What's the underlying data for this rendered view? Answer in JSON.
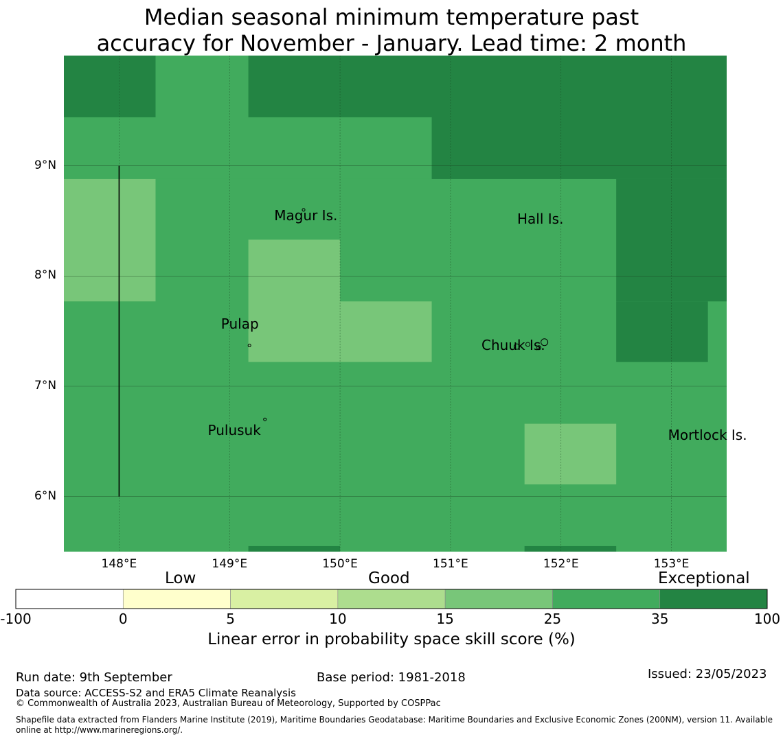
{
  "title": {
    "line1": "Median seasonal minimum temperature past",
    "line2": "accuracy for November - January. Lead time: 2 month"
  },
  "map": {
    "lon_range": [
      147.5,
      153.5
    ],
    "lat_range": [
      5.5,
      10.0
    ],
    "x_ticks": [
      "148°E",
      "149°E",
      "150°E",
      "151°E",
      "152°E",
      "153°E"
    ],
    "y_ticks": [
      "9°N",
      "8°N",
      "7°N",
      "6°N"
    ],
    "places": [
      {
        "name": "Magur Is.",
        "lon": 149.69,
        "lat": 8.6
      },
      {
        "name": "Hall Is.",
        "lon": 151.84,
        "lat": 8.62
      },
      {
        "name": "Pulap",
        "lon": 149.42,
        "lat": 7.59
      },
      {
        "name": "Chuuk Is.",
        "lon": 151.84,
        "lat": 7.45
      },
      {
        "name": "Mortlock Is.",
        "lon": 153.74,
        "lat": 6.66
      },
      {
        "name": "Pulusuk",
        "lon": 149.3,
        "lat": 6.7
      }
    ],
    "grid_cells": [
      {
        "lon": [
          147.5,
          148.33
        ],
        "lat": [
          9.44,
          10.0
        ],
        "score_category": "35-100"
      },
      {
        "lon": [
          148.33,
          149.17
        ],
        "lat": [
          9.44,
          10.0
        ],
        "score_category": "25-35"
      },
      {
        "lon": [
          149.17,
          153.5
        ],
        "lat": [
          9.44,
          10.0
        ],
        "score_category": "35-100"
      },
      {
        "lon": [
          147.5,
          150.83
        ],
        "lat": [
          8.88,
          9.44
        ],
        "score_category": "25-35"
      },
      {
        "lon": [
          150.83,
          153.5
        ],
        "lat": [
          8.88,
          9.44
        ],
        "score_category": "35-100"
      },
      {
        "lon": [
          147.5,
          148.33
        ],
        "lat": [
          7.77,
          8.88
        ],
        "score_category": "15-25"
      },
      {
        "lon": [
          149.17,
          150.0
        ],
        "lat": [
          7.22,
          8.33
        ],
        "score_category": "15-25"
      },
      {
        "lon": [
          150.0,
          150.83
        ],
        "lat": [
          7.22,
          7.77
        ],
        "score_category": "15-25"
      },
      {
        "lon": [
          152.5,
          153.5
        ],
        "lat": [
          7.77,
          8.88
        ],
        "score_category": "35-100"
      },
      {
        "lon": [
          152.5,
          153.33
        ],
        "lat": [
          7.22,
          7.77
        ],
        "score_category": "35-100"
      },
      {
        "lon": [
          151.67,
          152.5
        ],
        "lat": [
          6.11,
          6.66
        ],
        "score_category": "15-25"
      },
      {
        "lon": [
          149.17,
          150.0
        ],
        "lat": [
          5.5,
          5.55
        ],
        "score_category": "35-100"
      },
      {
        "lon": [
          151.67,
          152.5
        ],
        "lat": [
          5.5,
          5.55
        ],
        "score_category": "35-100"
      }
    ],
    "default_category": "25-35",
    "vertical_line_lon": 148.0,
    "vertical_line_lat": [
      6.0,
      9.0
    ]
  },
  "legend": {
    "categories": [
      "Low",
      "Good",
      "Exceptional"
    ],
    "ticks": [
      "-100",
      "0",
      "5",
      "10",
      "15",
      "25",
      "35",
      "100"
    ],
    "colors": [
      "#ffffff",
      "#ffffcc",
      "#d9f0a3",
      "#addd8e",
      "#78c679",
      "#41ab5d",
      "#238443"
    ],
    "title": "Linear error in probability space skill score (%)"
  },
  "colors": {
    "15-25": "#78c679",
    "25-35": "#41ab5d",
    "35-100": "#238443"
  },
  "footer": {
    "run_date": "Run date: 9th September",
    "base_period": "Base period: 1981-2018",
    "issued": "Issued: 23/05/2023",
    "data_source": "Data source: ACCESS-S2 and ERA5 Climate Reanalysis",
    "copyright": "© Commonwealth of Australia 2023, Australian Bureau of Meteorology, Supported by COSPPac",
    "shapefile_line1": "Shapefile data extracted from Flanders Marine Institute (2019), Maritime Boundaries Geodatabase: Maritime Boundaries and Exclusive Economic Zones (200NM), version 11. Available",
    "shapefile_line2": "online at http://www.marineregions.org/."
  }
}
